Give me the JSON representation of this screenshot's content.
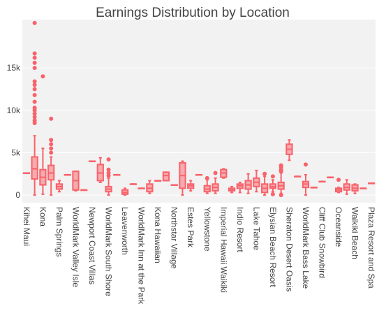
{
  "chart_data": {
    "type": "box",
    "title": "Earnings Distribution by Location",
    "color": "#f8626a",
    "grid": true,
    "categories": [
      "Kihei Maui",
      null,
      "Kona",
      null,
      "Palm Springs",
      null,
      "WorldMark Valley Isle",
      null,
      "Newport Coast Villas",
      null,
      "WorldMark South Shore",
      null,
      "Leavenworth",
      null,
      "WorldMark Inn at the Park",
      null,
      "Kona Hawaiian",
      null,
      "Northstar Village",
      null,
      "Estes Park",
      null,
      "Yellowstone",
      null,
      "Imperial Hawaii Waikiki",
      null,
      "Indio Resort",
      null,
      "Lake Tahoe",
      null,
      "Elysian Beach Resort",
      null,
      "Sheraton Desert Oasis",
      null,
      "WorldMark Bass Lake",
      null,
      "Cliff Club Snowbird",
      null,
      "Oceanside",
      null,
      "Waikiki Beach",
      null,
      "Plaza Resort and Spa"
    ],
    "min": [
      2600,
      0,
      100,
      0,
      400,
      2400,
      500,
      600,
      4000,
      1500,
      0,
      2400,
      0,
      1300,
      800,
      200,
      1700,
      1700,
      1200,
      0,
      500,
      2400,
      200,
      200,
      2000,
      300,
      300,
      200,
      400,
      0,
      400,
      200,
      4100,
      2200,
      0,
      900,
      1600,
      2100,
      300,
      100,
      200,
      800,
      1400
    ],
    "q1": [
      2600,
      1900,
      1200,
      1800,
      700,
      2400,
      600,
      600,
      4000,
      1700,
      400,
      2400,
      100,
      1300,
      800,
      400,
      1700,
      1700,
      1200,
      800,
      800,
      2400,
      400,
      500,
      2100,
      500,
      800,
      700,
      1000,
      300,
      800,
      700,
      4800,
      2200,
      900,
      900,
      1600,
      2100,
      400,
      600,
      500,
      800,
      1400
    ],
    "median": [
      2600,
      3100,
      2100,
      2600,
      1000,
      2400,
      1700,
      600,
      4000,
      2600,
      700,
      2400,
      300,
      1300,
      800,
      800,
      1700,
      2300,
      1200,
      2300,
      1100,
      2400,
      700,
      900,
      2600,
      600,
      1100,
      1200,
      1500,
      800,
      1000,
      1100,
      5400,
      2200,
      1300,
      900,
      1600,
      2100,
      600,
      900,
      800,
      800,
      1400
    ],
    "q3": [
      2600,
      4500,
      3000,
      3500,
      1300,
      2400,
      2800,
      600,
      4000,
      3600,
      1000,
      2400,
      600,
      1300,
      800,
      1300,
      1700,
      2700,
      1200,
      3800,
      1300,
      2400,
      1100,
      1300,
      3000,
      800,
      1300,
      1700,
      2000,
      1300,
      1300,
      1500,
      6000,
      2200,
      1600,
      900,
      1600,
      2100,
      800,
      1300,
      1200,
      800,
      1400
    ],
    "max": [
      2600,
      7000,
      5500,
      4500,
      1700,
      2400,
      2800,
      600,
      4000,
      4400,
      2000,
      2400,
      800,
      1300,
      800,
      1700,
      1700,
      2700,
      1200,
      4000,
      1700,
      2400,
      1800,
      2000,
      3100,
      1000,
      1500,
      2500,
      2900,
      2200,
      1800,
      2600,
      6500,
      2200,
      2400,
      900,
      1600,
      2100,
      900,
      1800,
      1300,
      800,
      1400
    ],
    "outliers": [
      [],
      [
        8500,
        8800,
        9200,
        9600,
        10000,
        10300,
        11000,
        11800,
        12500,
        13000,
        13400,
        15000,
        15600,
        16200,
        16700,
        20300
      ],
      [
        14000
      ],
      [
        5000,
        5500,
        6000,
        6500,
        9000
      ],
      [],
      [],
      [],
      [],
      [],
      [],
      [
        2300,
        2600,
        3000,
        4200
      ],
      [],
      [],
      [],
      [],
      [],
      [],
      [],
      [],
      [],
      [],
      [],
      [
        2000
      ],
      [
        2600
      ],
      [],
      [],
      [],
      [],
      [],
      [
        2500
      ],
      [
        100,
        2200
      ],
      [
        0,
        2800,
        3000,
        3300,
        3500
      ],
      [],
      [],
      [
        3600
      ],
      [],
      [],
      [],
      [
        1800
      ],
      [],
      [],
      [],
      []
    ],
    "ylim": [
      -900,
      20700
    ],
    "yticks": [
      0,
      {
        "value": 5000,
        "label": "5k"
      },
      {
        "value": 10000,
        "label": "10k"
      },
      {
        "value": 15000,
        "label": "15k"
      }
    ]
  }
}
